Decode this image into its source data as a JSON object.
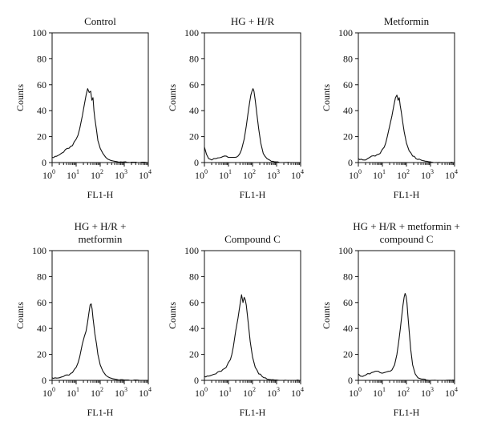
{
  "chart_data": [
    {
      "type": "line",
      "title_lines": [
        "Control"
      ],
      "xlabel": "FL1-H",
      "ylabel": "Counts",
      "xscale": "log",
      "xlim": [
        1,
        10000
      ],
      "ylim": [
        0,
        100
      ],
      "yticks": [
        "0",
        "20",
        "40",
        "60",
        "80",
        "100"
      ],
      "xtick_base": "10",
      "xtick_exps": [
        "0",
        "1",
        "2",
        "3",
        "4"
      ],
      "x": [
        1,
        2,
        3,
        5,
        7,
        10,
        14,
        18,
        22,
        26,
        30,
        35,
        40,
        45,
        50,
        55,
        60,
        70,
        80,
        100,
        130,
        170,
        250,
        400,
        700,
        1000,
        2000,
        4000,
        10000
      ],
      "values": [
        4,
        6,
        8,
        11,
        13,
        18,
        26,
        36,
        45,
        52,
        57,
        54,
        55,
        48,
        50,
        40,
        34,
        25,
        17,
        11,
        7,
        4,
        2,
        1,
        0.5,
        0.5,
        0.3,
        0,
        0
      ]
    },
    {
      "type": "line",
      "title_lines": [
        "HG + H/R"
      ],
      "xlabel": "FL1-H",
      "ylabel": "Counts",
      "xscale": "log",
      "xlim": [
        1,
        10000
      ],
      "ylim": [
        0,
        100
      ],
      "yticks": [
        "0",
        "20",
        "40",
        "60",
        "80",
        "100"
      ],
      "xtick_base": "10",
      "xtick_exps": [
        "0",
        "1",
        "2",
        "3",
        "4"
      ],
      "x": [
        1,
        1.5,
        2,
        3,
        5,
        8,
        12,
        18,
        25,
        35,
        45,
        55,
        65,
        75,
        85,
        95,
        105,
        115,
        130,
        150,
        180,
        220,
        280,
        400,
        700,
        1000,
        2000,
        10000
      ],
      "values": [
        12,
        3,
        2,
        3,
        4,
        5,
        4,
        4,
        5,
        10,
        18,
        28,
        38,
        46,
        52,
        55,
        57,
        55,
        48,
        38,
        26,
        15,
        7,
        3,
        1,
        0.5,
        0,
        0
      ]
    },
    {
      "type": "line",
      "title_lines": [
        "Metformin"
      ],
      "xlabel": "FL1-H",
      "ylabel": "Counts",
      "xscale": "log",
      "xlim": [
        1,
        10000
      ],
      "ylim": [
        0,
        100
      ],
      "yticks": [
        "0",
        "20",
        "40",
        "60",
        "80",
        "100"
      ],
      "xtick_base": "10",
      "xtick_exps": [
        "0",
        "1",
        "2",
        "3",
        "4"
      ],
      "x": [
        1,
        2,
        3,
        5,
        8,
        12,
        16,
        20,
        25,
        30,
        35,
        40,
        45,
        50,
        55,
        60,
        70,
        80,
        100,
        130,
        180,
        250,
        400,
        700,
        1000,
        2000,
        10000
      ],
      "values": [
        3,
        2,
        4,
        5,
        7,
        12,
        20,
        28,
        36,
        44,
        50,
        52,
        48,
        50,
        44,
        40,
        31,
        24,
        15,
        9,
        5,
        3,
        2,
        1,
        0.5,
        0,
        0
      ]
    },
    {
      "type": "line",
      "title_lines": [
        "HG + H/R +",
        "metformin"
      ],
      "xlabel": "FL1-H",
      "ylabel": "Counts",
      "xscale": "log",
      "xlim": [
        1,
        10000
      ],
      "ylim": [
        0,
        100
      ],
      "yticks": [
        "0",
        "20",
        "40",
        "60",
        "80",
        "100"
      ],
      "xtick_base": "10",
      "xtick_exps": [
        "0",
        "1",
        "2",
        "3",
        "4"
      ],
      "x": [
        1,
        2,
        3,
        5,
        7,
        10,
        14,
        18,
        22,
        26,
        30,
        34,
        38,
        42,
        46,
        50,
        55,
        60,
        70,
        80,
        100,
        130,
        170,
        250,
        400,
        700,
        1000,
        2000,
        10000
      ],
      "values": [
        2,
        2,
        3,
        4,
        6,
        10,
        18,
        28,
        34,
        38,
        45,
        52,
        58,
        59,
        55,
        48,
        42,
        36,
        28,
        20,
        12,
        7,
        4,
        2,
        1,
        0.5,
        0.3,
        0,
        0
      ]
    },
    {
      "type": "line",
      "title_lines": [
        "Compound C"
      ],
      "xlabel": "FL1-H",
      "ylabel": "Counts",
      "xscale": "log",
      "xlim": [
        1,
        10000
      ],
      "ylim": [
        0,
        100
      ],
      "yticks": [
        "0",
        "20",
        "40",
        "60",
        "80",
        "100"
      ],
      "xtick_base": "10",
      "xtick_exps": [
        "0",
        "1",
        "2",
        "3",
        "4"
      ],
      "x": [
        1,
        2,
        3,
        5,
        8,
        12,
        16,
        20,
        25,
        30,
        35,
        40,
        45,
        50,
        55,
        60,
        70,
        80,
        100,
        130,
        180,
        250,
        400,
        700,
        1000,
        2000,
        10000
      ],
      "values": [
        3,
        4,
        5,
        7,
        10,
        16,
        26,
        38,
        48,
        58,
        66,
        60,
        64,
        62,
        58,
        52,
        40,
        30,
        18,
        10,
        5,
        3,
        1,
        0.5,
        0.3,
        0,
        0
      ]
    },
    {
      "type": "line",
      "title_lines": [
        "HG + H/R + metformin +",
        "compound C"
      ],
      "xlabel": "FL1-H",
      "ylabel": "Counts",
      "xscale": "log",
      "xlim": [
        1,
        10000
      ],
      "ylim": [
        0,
        100
      ],
      "yticks": [
        "0",
        "20",
        "40",
        "60",
        "80",
        "100"
      ],
      "xtick_base": "10",
      "xtick_exps": [
        "0",
        "1",
        "2",
        "3",
        "4"
      ],
      "x": [
        1,
        1.5,
        2,
        3,
        5,
        8,
        12,
        18,
        25,
        32,
        40,
        48,
        56,
        64,
        72,
        80,
        88,
        96,
        105,
        115,
        130,
        150,
        180,
        230,
        300,
        500,
        1000,
        10000
      ],
      "values": [
        5,
        3,
        4,
        5,
        7,
        6,
        6,
        7,
        8,
        12,
        20,
        30,
        40,
        50,
        58,
        64,
        67,
        65,
        60,
        50,
        38,
        24,
        12,
        5,
        2,
        1,
        0,
        0
      ]
    }
  ]
}
